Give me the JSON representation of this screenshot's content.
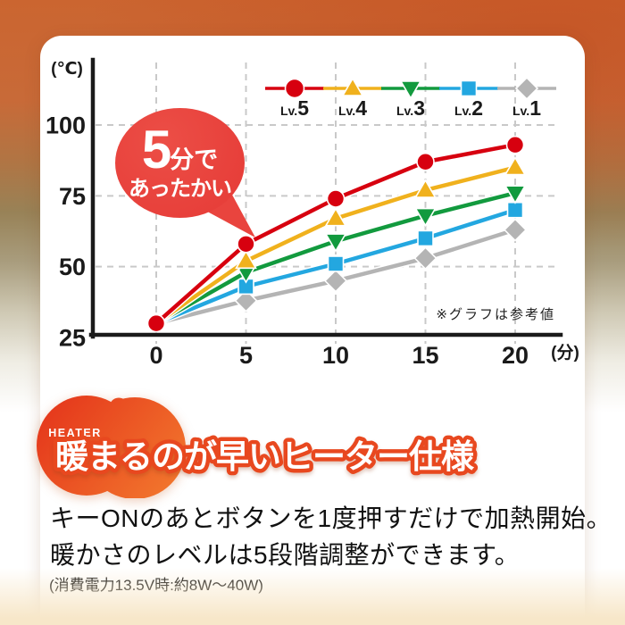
{
  "colors": {
    "accent_red": "#d7000f",
    "bubble_red": "#e9443e",
    "blob_gradient_start": "#e5381c",
    "blob_gradient_end": "#f37b2e",
    "heading_stroke": "#e8481f",
    "axis_black": "#1a1a1a",
    "grid_gray": "#c9c9c9",
    "bottom_cream": "#f7e7c9"
  },
  "chart": {
    "y_unit_label": "(℃)",
    "x_unit_label": "(分)",
    "note": "※グラフは参考値"
  },
  "chart_data": {
    "type": "line",
    "x": [
      0,
      5,
      10,
      15,
      20
    ],
    "xlabel": "(分)",
    "ylabel": "(℃)",
    "xlim": [
      0,
      20
    ],
    "ylim": [
      25,
      110
    ],
    "y_ticks": [
      100,
      75,
      50,
      25
    ],
    "grid": true,
    "legend_position": "top-right",
    "series": [
      {
        "name": "Lv.5",
        "color": "#d7000f",
        "marker": "circle",
        "values": [
          30,
          58,
          74,
          87,
          93
        ]
      },
      {
        "name": "Lv.4",
        "color": "#f0b11d",
        "marker": "triangle-up",
        "values": [
          30,
          52,
          67,
          77,
          85
        ]
      },
      {
        "name": "Lv.3",
        "color": "#129a3e",
        "marker": "triangle-down",
        "values": [
          30,
          48,
          59,
          68,
          76
        ]
      },
      {
        "name": "Lv.2",
        "color": "#23a7e0",
        "marker": "square",
        "values": [
          30,
          43,
          51,
          60,
          70
        ]
      },
      {
        "name": "Lv.1",
        "color": "#b4b4b4",
        "marker": "diamond",
        "values": [
          30,
          38,
          45,
          53,
          63
        ]
      }
    ]
  },
  "bubble": {
    "line1_big": "5",
    "line1_small": "分で",
    "line2": "あったかい"
  },
  "section": {
    "badge": "HEATER",
    "heading": "暖まるのが早いヒーター仕様",
    "body_line1": "キーONのあとボタンを1度押すだけで加熱開始。",
    "body_line2": "暖かさのレベルは5段階調整ができます。",
    "note": "(消費電力13.5V時:約8W〜40W)"
  }
}
